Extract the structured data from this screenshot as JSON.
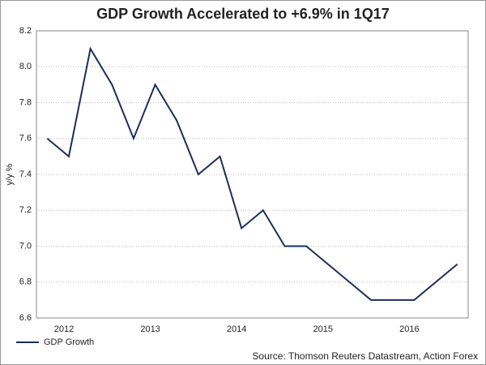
{
  "chart_data": {
    "type": "line",
    "title": "GDP Growth Accelerated to +6.9% in 1Q17",
    "y_label": "y/y %",
    "source": "Source: Thomson Reuters Datastream, Action Forex",
    "categories": [
      null,
      "2012",
      null,
      null,
      null,
      "2013",
      null,
      null,
      null,
      "2014",
      null,
      null,
      null,
      "2015",
      null,
      null,
      null,
      "2016",
      null,
      null
    ],
    "series": [
      {
        "name": "GDP Growth",
        "color": "#1b2f5c",
        "values": [
          7.6,
          7.5,
          8.1,
          7.9,
          7.6,
          7.9,
          7.7,
          7.4,
          7.5,
          7.1,
          7.2,
          7,
          7,
          6.9,
          6.8,
          6.7,
          6.7,
          6.7,
          6.8,
          6.9
        ]
      }
    ],
    "ylim": [
      6.6,
      8.2
    ],
    "yticks": [
      6.6,
      6.8,
      {
        "value": 7,
        "label": "7.0"
      },
      7.2,
      7.4,
      7.6,
      7.8,
      {
        "value": 8,
        "label": "8.0"
      },
      8.2
    ],
    "grid": true,
    "legend": "bottom-left"
  }
}
